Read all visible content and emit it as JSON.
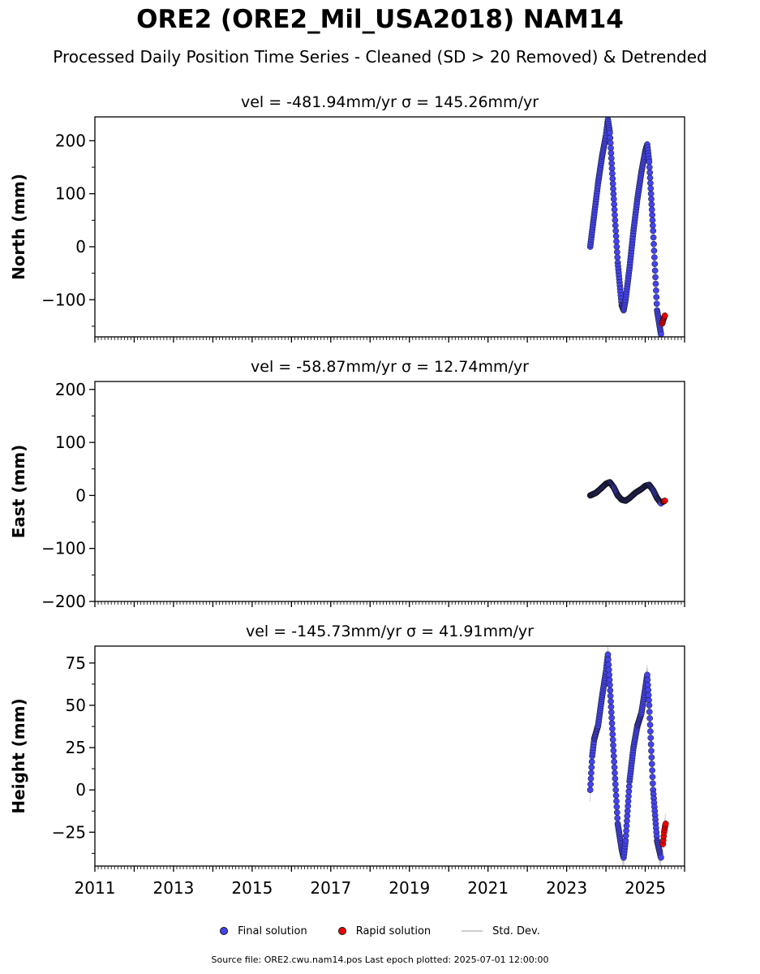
{
  "title": "ORE2 (ORE2_Mil_USA2018) NAM14",
  "subtitle": "Processed Daily Position Time Series - Cleaned (SD > 20 Removed) & Detrended",
  "legend": {
    "final": "Final solution",
    "rapid": "Rapid solution",
    "std": "Std. Dev."
  },
  "footer": "Source file: ORE2.cwu.nam14.pos  Last epoch plotted: 2025-07-01 12:00:00",
  "colors": {
    "final": "#4444ee",
    "rapid": "#ee0000",
    "std": "#bbbbbb"
  },
  "chart_data": [
    {
      "type": "scatter",
      "panel_title": "vel = -481.94mm/yr   σ = 145.26mm/yr",
      "ylabel": "North (mm)",
      "xlim": [
        2011.0,
        2026.0
      ],
      "ylim": [
        -170,
        245
      ],
      "yticks": [
        -100,
        0,
        100,
        200
      ],
      "ytick_labels": [
        "−100",
        "0",
        "100",
        "200"
      ],
      "xticks": [
        2011,
        2013,
        2015,
        2017,
        2019,
        2021,
        2023,
        2025
      ],
      "show_xtick_labels": false,
      "series": [
        {
          "name": "Final solution",
          "x": [
            2023.6,
            2023.7,
            2023.8,
            2023.9,
            2024.0,
            2024.05,
            2024.1,
            2024.2,
            2024.3,
            2024.4,
            2024.45,
            2024.5,
            2024.6,
            2024.7,
            2024.8,
            2024.9,
            2025.0,
            2025.05,
            2025.1,
            2025.2,
            2025.3,
            2025.4
          ],
          "y": [
            0,
            60,
            120,
            170,
            210,
            240,
            215,
            90,
            -30,
            -110,
            -120,
            -100,
            -40,
            30,
            90,
            140,
            180,
            193,
            160,
            30,
            -120,
            -165
          ]
        },
        {
          "name": "Rapid solution",
          "x": [
            2025.43,
            2025.47,
            2025.5
          ],
          "y": [
            -145,
            -135,
            -130
          ]
        }
      ]
    },
    {
      "type": "scatter",
      "panel_title": "vel = -58.87mm/yr   σ = 12.74mm/yr",
      "ylabel": "East (mm)",
      "xlim": [
        2011.0,
        2026.0
      ],
      "ylim": [
        -200,
        215
      ],
      "yticks": [
        -200,
        -100,
        0,
        100,
        200
      ],
      "ytick_labels": [
        "−200",
        "−100",
        "0",
        "100",
        "200"
      ],
      "xticks": [
        2011,
        2013,
        2015,
        2017,
        2019,
        2021,
        2023,
        2025
      ],
      "show_xtick_labels": false,
      "series": [
        {
          "name": "Final solution",
          "x": [
            2023.6,
            2023.75,
            2023.9,
            2024.0,
            2024.1,
            2024.2,
            2024.3,
            2024.4,
            2024.5,
            2024.6,
            2024.75,
            2024.9,
            2025.0,
            2025.1,
            2025.2,
            2025.3,
            2025.4
          ],
          "y": [
            0,
            5,
            15,
            22,
            25,
            15,
            0,
            -8,
            -10,
            -5,
            5,
            12,
            18,
            20,
            10,
            -5,
            -15
          ]
        },
        {
          "name": "Rapid solution",
          "x": [
            2025.45,
            2025.5
          ],
          "y": [
            -12,
            -10
          ]
        }
      ]
    },
    {
      "type": "scatter",
      "panel_title": "vel = -145.73mm/yr   σ = 41.91mm/yr",
      "ylabel": "Height (mm)",
      "xlim": [
        2011.0,
        2026.0
      ],
      "ylim": [
        -45,
        85
      ],
      "yticks": [
        -25,
        0,
        25,
        50,
        75
      ],
      "ytick_labels": [
        "−25",
        "0",
        "25",
        "50",
        "75"
      ],
      "xticks": [
        2011,
        2013,
        2015,
        2017,
        2019,
        2021,
        2023,
        2025
      ],
      "xtick_labels": [
        "2011",
        "2013",
        "2015",
        "2017",
        "2019",
        "2021",
        "2023",
        "2025"
      ],
      "show_xtick_labels": true,
      "series": [
        {
          "name": "Final solution",
          "x": [
            2023.6,
            2023.65,
            2023.7,
            2023.8,
            2023.9,
            2024.0,
            2024.05,
            2024.1,
            2024.2,
            2024.3,
            2024.4,
            2024.45,
            2024.5,
            2024.6,
            2024.7,
            2024.8,
            2024.9,
            2025.0,
            2025.05,
            2025.1,
            2025.2,
            2025.3,
            2025.4
          ],
          "y": [
            0,
            20,
            30,
            38,
            55,
            70,
            80,
            62,
            20,
            -20,
            -35,
            -40,
            -30,
            5,
            25,
            38,
            45,
            60,
            68,
            50,
            0,
            -30,
            -40
          ]
        },
        {
          "name": "Rapid solution",
          "x": [
            2025.45,
            2025.48,
            2025.5,
            2025.52
          ],
          "y": [
            -32,
            -25,
            -22,
            -20
          ]
        }
      ]
    }
  ]
}
